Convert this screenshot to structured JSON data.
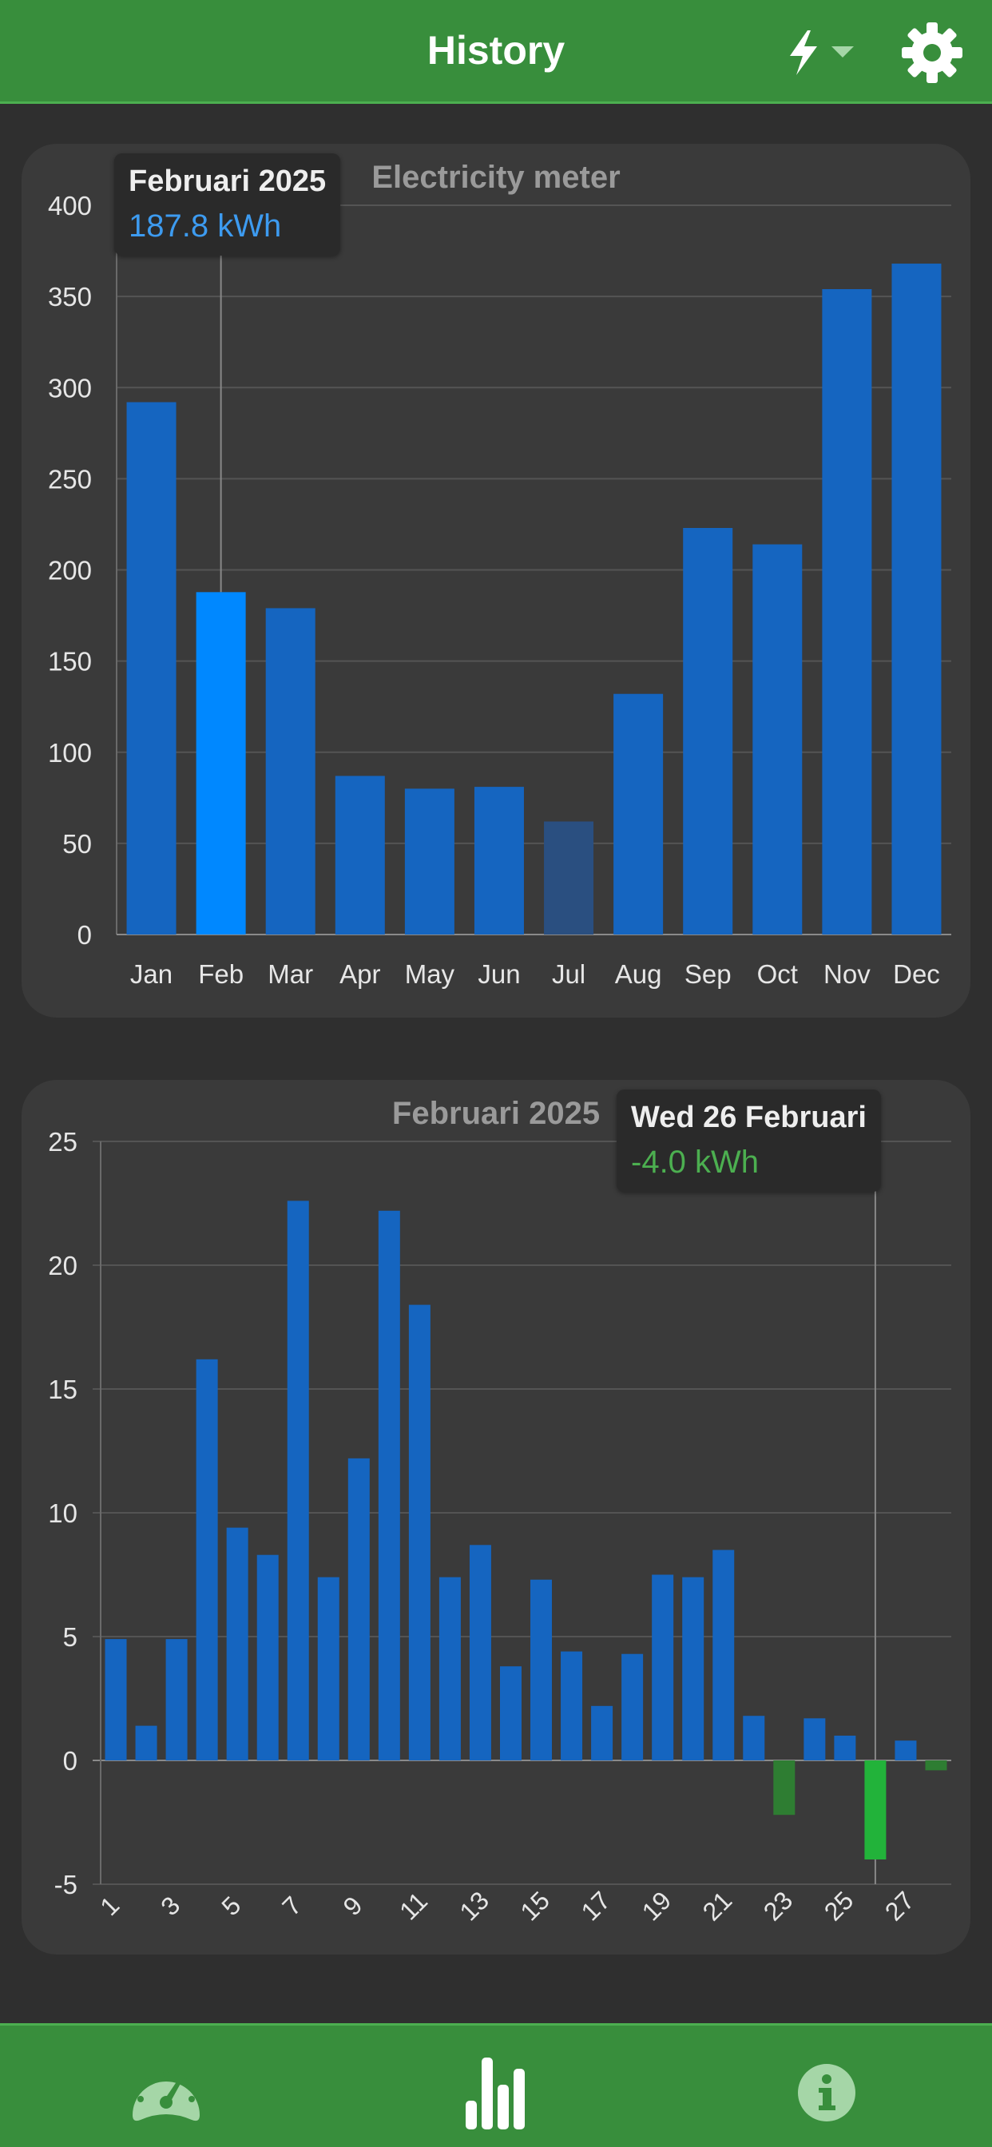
{
  "header": {
    "title": "History"
  },
  "icons": {
    "meter": "bolt-icon",
    "dropdown": "chevron-down-icon",
    "settings": "gear-icon",
    "nav_live": "speedometer-icon",
    "nav_history": "bar-chart-icon",
    "nav_info": "info-icon"
  },
  "colors": {
    "header_green": "#388e3c",
    "bar_blue": "#1565c0",
    "bar_highlight": "#0088ff",
    "bar_muted": "#2a4f80",
    "bar_negative": "#2e7d32",
    "bar_negative_highlight": "#22b33a",
    "tooltip_value_blue": "#3d9bf0",
    "tooltip_value_green": "#4caf50"
  },
  "monthly": {
    "tooltip": {
      "title": "Februari 2025",
      "value": "187.8 kWh"
    }
  },
  "daily": {
    "tooltip": {
      "title": "Wed 26 Februari",
      "value": "-4.0 kWh"
    }
  },
  "chart_data": [
    {
      "type": "bar",
      "title": "Electricity meter",
      "categories": [
        "Jan",
        "Feb",
        "Mar",
        "Apr",
        "May",
        "Jun",
        "Jul",
        "Aug",
        "Sep",
        "Oct",
        "Nov",
        "Dec"
      ],
      "values": [
        292,
        187.8,
        179,
        87,
        80,
        81,
        62,
        132,
        223,
        214,
        354,
        368
      ],
      "ylim": [
        0,
        400
      ],
      "yticks": [
        0,
        50,
        100,
        150,
        200,
        250,
        300,
        350,
        400
      ],
      "highlight_index": 1,
      "muted_index": 6,
      "grid": true
    },
    {
      "type": "bar",
      "title": "Februari 2025",
      "x": [
        1,
        2,
        3,
        4,
        5,
        6,
        7,
        8,
        9,
        10,
        11,
        12,
        13,
        14,
        15,
        16,
        17,
        18,
        19,
        20,
        21,
        22,
        23,
        24,
        25,
        26,
        27,
        28
      ],
      "values": [
        4.9,
        1.4,
        4.9,
        16.2,
        9.4,
        8.3,
        22.6,
        7.4,
        12.2,
        22.2,
        18.4,
        7.4,
        8.7,
        3.8,
        7.3,
        4.4,
        2.2,
        4.3,
        7.5,
        7.4,
        8.5,
        1.8,
        -2.2,
        1.7,
        1.0,
        -4.0,
        0.8,
        -0.4
      ],
      "xtick_labels": [
        "1",
        "3",
        "5",
        "7",
        "9",
        "11",
        "13",
        "15",
        "17",
        "19",
        "21",
        "23",
        "25",
        "27"
      ],
      "ylim": [
        -5,
        25
      ],
      "yticks": [
        -5,
        0,
        5,
        10,
        15,
        20,
        25
      ],
      "highlight_index": 25,
      "grid": true
    }
  ]
}
